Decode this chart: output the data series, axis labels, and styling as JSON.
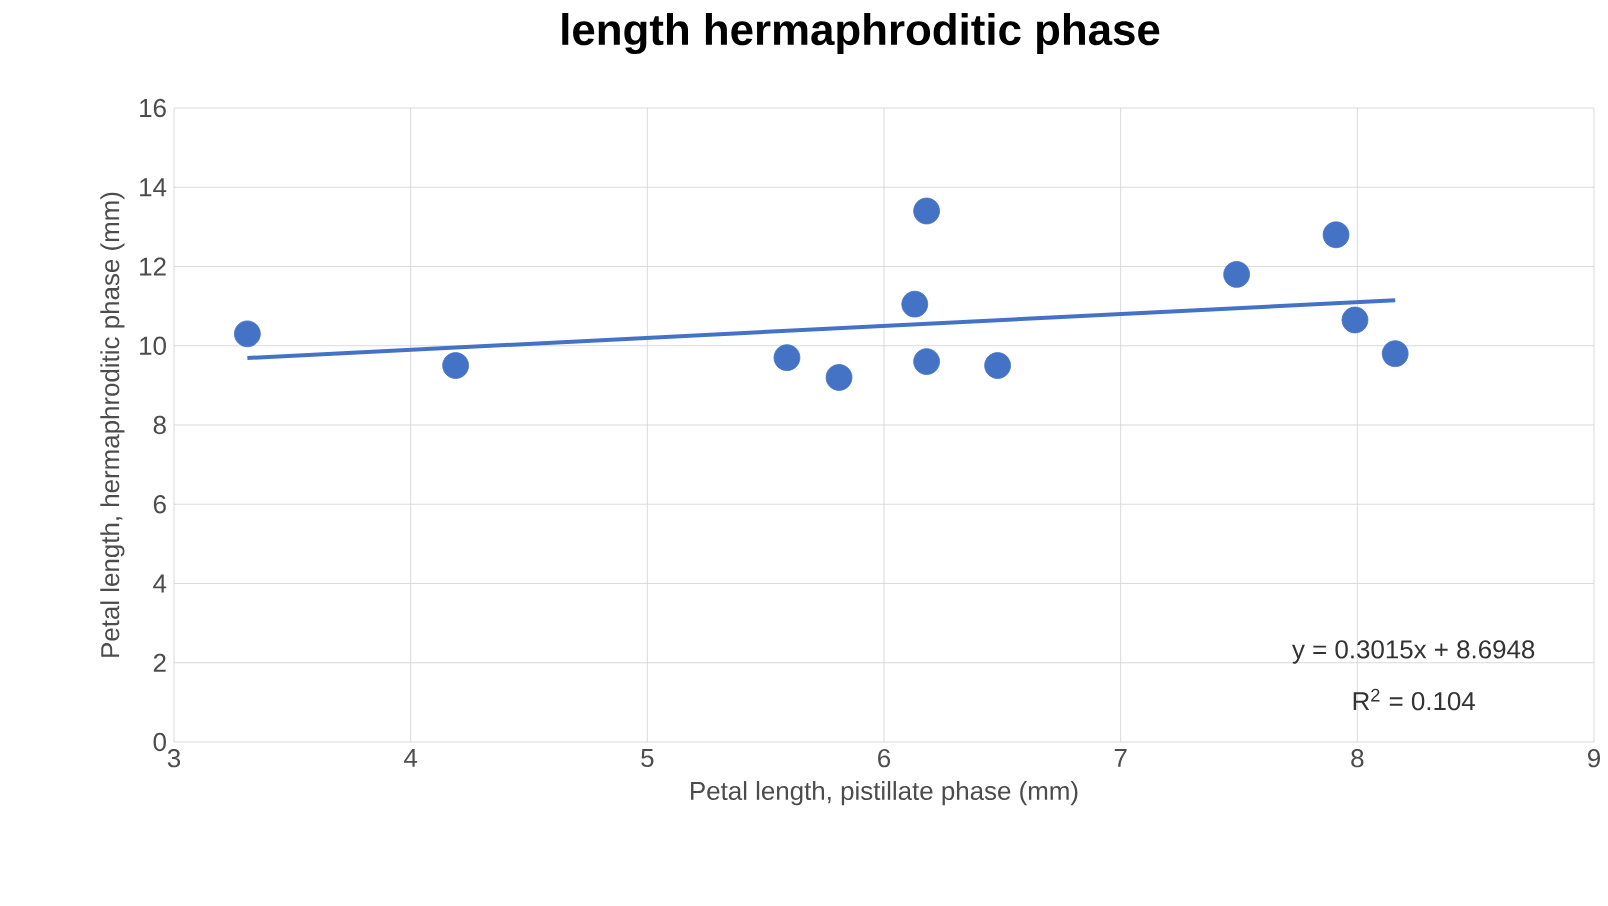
{
  "chart_data": {
    "type": "scatter",
    "title": "length hermaphroditic phase",
    "xlabel": "Petal length, pistillate phase (mm)",
    "ylabel": "Petal length, hermaphroditic phase (mm)",
    "xlim": [
      3,
      9
    ],
    "ylim": [
      0,
      16
    ],
    "xticks": [
      3,
      4,
      5,
      6,
      7,
      8,
      9
    ],
    "yticks": [
      0,
      2,
      4,
      6,
      8,
      10,
      12,
      14,
      16
    ],
    "grid": true,
    "series": [
      {
        "color": "#4472c4",
        "x": [
          3.31,
          4.19,
          5.59,
          5.81,
          6.13,
          6.18,
          6.18,
          6.48,
          7.49,
          7.91,
          7.99,
          8.16
        ],
        "values": [
          10.3,
          9.5,
          9.7,
          9.2,
          11.05,
          13.4,
          9.6,
          9.5,
          11.8,
          12.8,
          10.65,
          9.8
        ]
      },
      {
        "type": "line",
        "color": "#4472c4",
        "x": [
          3.31,
          8.16
        ],
        "values": [
          9.69,
          11.15
        ]
      }
    ],
    "annotations": [
      "y = 0.3015x + 8.6948",
      "R$^{2}$ = 0.104"
    ]
  }
}
